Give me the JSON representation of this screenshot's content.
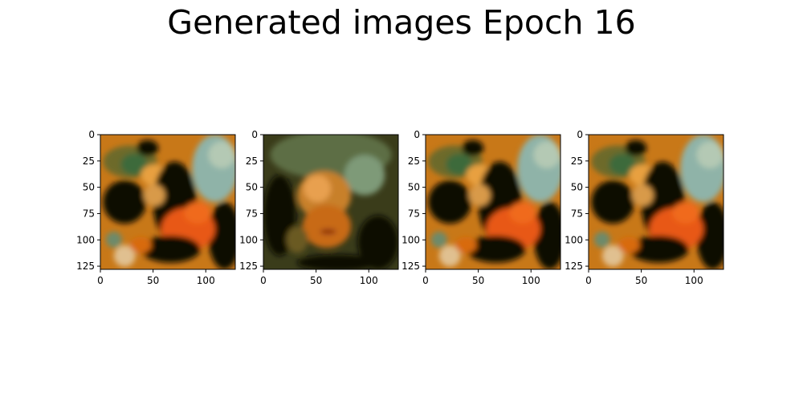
{
  "figure": {
    "title": "Generated images Epoch 16"
  },
  "chart_data": {
    "type": "image-grid",
    "title": "Generated images Epoch 16",
    "panels": [
      {
        "kind": "generated-image",
        "image_size": [
          128,
          128
        ],
        "xlim": [
          0,
          127
        ],
        "ylim": [
          127,
          0
        ],
        "xticks": [
          0,
          50,
          100
        ],
        "yticks": [
          0,
          25,
          50,
          75,
          100,
          125
        ],
        "variant": "a"
      },
      {
        "kind": "generated-image",
        "image_size": [
          128,
          128
        ],
        "xlim": [
          0,
          127
        ],
        "ylim": [
          127,
          0
        ],
        "xticks": [
          0,
          50,
          100
        ],
        "yticks": [
          0,
          25,
          50,
          75,
          100,
          125
        ],
        "variant": "b"
      },
      {
        "kind": "generated-image",
        "image_size": [
          128,
          128
        ],
        "xlim": [
          0,
          127
        ],
        "ylim": [
          127,
          0
        ],
        "xticks": [
          0,
          50,
          100
        ],
        "yticks": [
          0,
          25,
          50,
          75,
          100,
          125
        ],
        "variant": "a"
      },
      {
        "kind": "generated-image",
        "image_size": [
          128,
          128
        ],
        "xlim": [
          0,
          127
        ],
        "ylim": [
          127,
          0
        ],
        "xticks": [
          0,
          50,
          100
        ],
        "yticks": [
          0,
          25,
          50,
          75,
          100,
          125
        ],
        "variant": "a"
      }
    ],
    "grid": false,
    "legend": "none"
  }
}
